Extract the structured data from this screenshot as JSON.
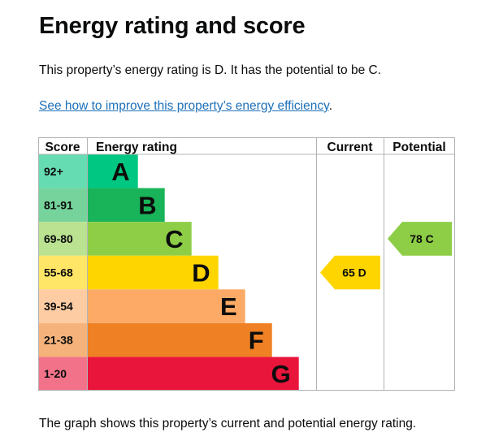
{
  "page": {
    "title": "Energy rating and score",
    "intro": "This property’s energy rating is D. It has the potential to be C.",
    "link_text": "See how to improve this property’s energy efficiency",
    "link_suffix": ".",
    "footer": "The graph shows this property’s current and potential energy rating."
  },
  "chart_data": {
    "type": "bar",
    "headers": {
      "score": "Score",
      "rating": "Energy rating",
      "current": "Current",
      "potential": "Potential"
    },
    "bands": [
      {
        "range": "92+",
        "letter": "A",
        "color": "#00c781",
        "score_color": "#66dcb3",
        "fraction": 0.19
      },
      {
        "range": "81-91",
        "letter": "B",
        "color": "#19b459",
        "score_color": "#75d39b",
        "fraction": 0.29
      },
      {
        "range": "69-80",
        "letter": "C",
        "color": "#8dce46",
        "score_color": "#bbe290",
        "fraction": 0.39
      },
      {
        "range": "55-68",
        "letter": "D",
        "color": "#ffd500",
        "score_color": "#ffe666",
        "fraction": 0.49
      },
      {
        "range": "39-54",
        "letter": "E",
        "color": "#fcaa65",
        "score_color": "#fdcca3",
        "fraction": 0.59
      },
      {
        "range": "21-38",
        "letter": "F",
        "color": "#ef8023",
        "score_color": "#f5b37b",
        "fraction": 0.69
      },
      {
        "range": "1-20",
        "letter": "G",
        "color": "#e9153b",
        "score_color": "#f27389",
        "fraction": 0.79
      }
    ],
    "current": {
      "score": 65,
      "letter": "D",
      "label": "65  D",
      "color": "#ffd500"
    },
    "potential": {
      "score": 78,
      "letter": "C",
      "label": "78  C",
      "color": "#8dce46"
    }
  }
}
